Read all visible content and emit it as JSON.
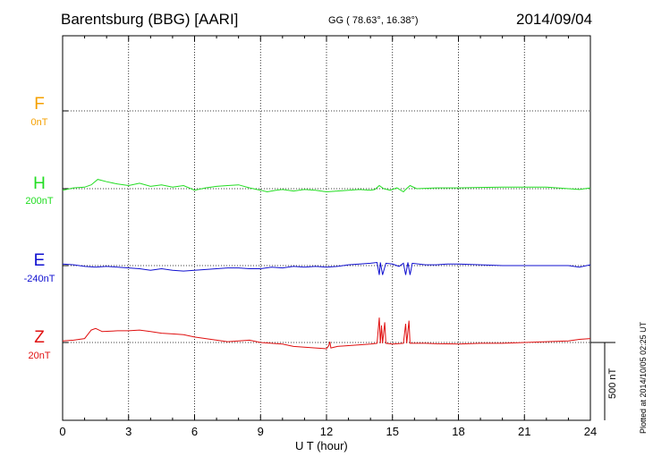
{
  "header": {
    "station": "Barentsburg (BBG)  [AARI]",
    "coords": "GG ( 78.63°,  16.38°)",
    "date": "2014/09/04"
  },
  "footer": {
    "xlabel": "U T (hour)",
    "plotted": "Plotted at 2014/10/05 02:25 UT",
    "scale": "500 nT"
  },
  "components": [
    {
      "letter": "F",
      "base": "0nT",
      "color": "#f5a000"
    },
    {
      "letter": "H",
      "base": "200nT",
      "color": "#22dd22"
    },
    {
      "letter": "E",
      "base": "-240nT",
      "color": "#1010d0"
    },
    {
      "letter": "Z",
      "base": "20nT",
      "color": "#e01010"
    }
  ],
  "chart_data": {
    "type": "line",
    "title": "Barentsburg (BBG)  [AARI]",
    "xlabel": "U T (hour)",
    "xlim": [
      0,
      24
    ],
    "xticks": [
      "0",
      "3",
      "6",
      "9",
      "12",
      "15",
      "18",
      "21",
      "24"
    ],
    "grid": true,
    "scale_bar_nT": 500,
    "series": [
      {
        "name": "H",
        "color": "#22dd22",
        "points": [
          [
            0,
            -10
          ],
          [
            0.5,
            5
          ],
          [
            1,
            10
          ],
          [
            1.3,
            25
          ],
          [
            1.6,
            60
          ],
          [
            2,
            45
          ],
          [
            2.5,
            30
          ],
          [
            3,
            20
          ],
          [
            3.5,
            35
          ],
          [
            4,
            15
          ],
          [
            4.5,
            25
          ],
          [
            5,
            10
          ],
          [
            5.5,
            20
          ],
          [
            6,
            -10
          ],
          [
            6.5,
            5
          ],
          [
            7,
            15
          ],
          [
            7.5,
            20
          ],
          [
            8,
            25
          ],
          [
            8.5,
            5
          ],
          [
            9,
            -10
          ],
          [
            9.3,
            -20
          ],
          [
            9.7,
            -10
          ],
          [
            10,
            -5
          ],
          [
            10.5,
            -15
          ],
          [
            11,
            -5
          ],
          [
            11.5,
            -10
          ],
          [
            12,
            -20
          ],
          [
            12.5,
            -15
          ],
          [
            13,
            -10
          ],
          [
            13.5,
            -5
          ],
          [
            14,
            -10
          ],
          [
            14.2,
            -5
          ],
          [
            14.4,
            20
          ],
          [
            14.6,
            0
          ],
          [
            14.9,
            -10
          ],
          [
            15.2,
            5
          ],
          [
            15.5,
            -20
          ],
          [
            15.6,
            -5
          ],
          [
            15.8,
            20
          ],
          [
            16.1,
            0
          ],
          [
            17,
            5
          ],
          [
            18,
            5
          ],
          [
            19,
            8
          ],
          [
            20,
            10
          ],
          [
            21,
            10
          ],
          [
            22,
            10
          ],
          [
            23,
            0
          ],
          [
            23.5,
            -5
          ],
          [
            24,
            5
          ]
        ]
      },
      {
        "name": "E",
        "color": "#1010d0",
        "points": [
          [
            0,
            10
          ],
          [
            0.5,
            5
          ],
          [
            1,
            -5
          ],
          [
            1.5,
            -10
          ],
          [
            2,
            -5
          ],
          [
            2.5,
            -10
          ],
          [
            3,
            -15
          ],
          [
            3.5,
            -20
          ],
          [
            4,
            -30
          ],
          [
            4.5,
            -20
          ],
          [
            5,
            -30
          ],
          [
            5.5,
            -35
          ],
          [
            6,
            -30
          ],
          [
            6.5,
            -25
          ],
          [
            7,
            -20
          ],
          [
            7.5,
            -15
          ],
          [
            8,
            -15
          ],
          [
            8.5,
            -20
          ],
          [
            9,
            -20
          ],
          [
            9.5,
            -10
          ],
          [
            10,
            -15
          ],
          [
            10.5,
            -5
          ],
          [
            11,
            -10
          ],
          [
            11.5,
            -5
          ],
          [
            12,
            -10
          ],
          [
            12.5,
            -5
          ],
          [
            13,
            5
          ],
          [
            13.5,
            10
          ],
          [
            14,
            15
          ],
          [
            14.3,
            20
          ],
          [
            14.4,
            -60
          ],
          [
            14.45,
            20
          ],
          [
            14.55,
            -60
          ],
          [
            14.7,
            15
          ],
          [
            15,
            10
          ],
          [
            15.3,
            -5
          ],
          [
            15.5,
            15
          ],
          [
            15.6,
            -60
          ],
          [
            15.7,
            20
          ],
          [
            15.8,
            -60
          ],
          [
            15.9,
            15
          ],
          [
            16.5,
            5
          ],
          [
            17,
            5
          ],
          [
            17.5,
            10
          ],
          [
            18,
            10
          ],
          [
            19,
            5
          ],
          [
            20,
            0
          ],
          [
            21,
            0
          ],
          [
            22,
            0
          ],
          [
            23,
            0
          ],
          [
            23.5,
            -10
          ],
          [
            24,
            5
          ]
        ]
      },
      {
        "name": "Z",
        "color": "#e01010",
        "points": [
          [
            0,
            10
          ],
          [
            0.5,
            15
          ],
          [
            1,
            25
          ],
          [
            1.3,
            80
          ],
          [
            1.5,
            90
          ],
          [
            1.8,
            70
          ],
          [
            2.5,
            75
          ],
          [
            3,
            75
          ],
          [
            3.5,
            80
          ],
          [
            4,
            70
          ],
          [
            4.5,
            60
          ],
          [
            5,
            55
          ],
          [
            5.5,
            50
          ],
          [
            6,
            35
          ],
          [
            6.5,
            25
          ],
          [
            7,
            15
          ],
          [
            7.5,
            5
          ],
          [
            8,
            10
          ],
          [
            8.5,
            15
          ],
          [
            9,
            0
          ],
          [
            9.5,
            -5
          ],
          [
            10,
            -10
          ],
          [
            10.5,
            -25
          ],
          [
            11,
            -30
          ],
          [
            11.5,
            -35
          ],
          [
            12,
            -40
          ],
          [
            12.1,
            -20
          ],
          [
            12.15,
            5
          ],
          [
            12.2,
            -35
          ],
          [
            12.5,
            -25
          ],
          [
            13,
            -20
          ],
          [
            13.5,
            -15
          ],
          [
            14,
            -10
          ],
          [
            14.3,
            -5
          ],
          [
            14.4,
            160
          ],
          [
            14.45,
            -5
          ],
          [
            14.5,
            110
          ],
          [
            14.55,
            -5
          ],
          [
            14.65,
            130
          ],
          [
            14.7,
            -5
          ],
          [
            15,
            -10
          ],
          [
            15.5,
            -5
          ],
          [
            15.6,
            120
          ],
          [
            15.65,
            -5
          ],
          [
            15.75,
            140
          ],
          [
            15.8,
            -5
          ],
          [
            15.9,
            -5
          ],
          [
            16.5,
            -5
          ],
          [
            17,
            -8
          ],
          [
            18,
            -10
          ],
          [
            19,
            -5
          ],
          [
            20,
            -5
          ],
          [
            21,
            0
          ],
          [
            22,
            5
          ],
          [
            23,
            10
          ],
          [
            23.5,
            20
          ],
          [
            24,
            25
          ]
        ]
      }
    ]
  }
}
